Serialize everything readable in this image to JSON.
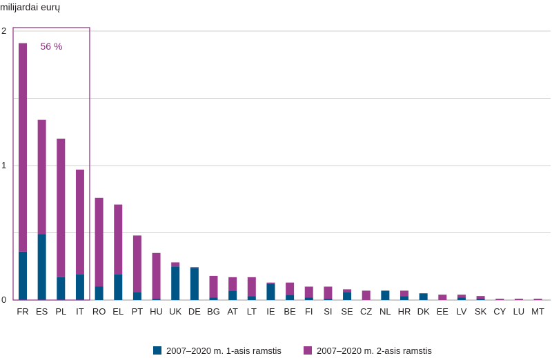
{
  "chart_data": {
    "type": "bar",
    "stacked": true,
    "ylabel": "milijardai eurų",
    "ylim": [
      0,
      2
    ],
    "yticks": [
      "0",
      "1",
      "2"
    ],
    "grid": true,
    "legend_position": "bottom",
    "categories": [
      "FR",
      "ES",
      "PL",
      "IT",
      "RO",
      "EL",
      "PT",
      "HU",
      "UK",
      "DE",
      "BG",
      "AT",
      "LT",
      "IE",
      "BE",
      "FI",
      "SI",
      "SE",
      "CZ",
      "NL",
      "HR",
      "DK",
      "EE",
      "LV",
      "SK",
      "CY",
      "LU",
      "MT"
    ],
    "series": [
      {
        "name": "2007–2020 m. 1-asis ramstis",
        "color": "#005587",
        "values": [
          0.36,
          0.49,
          0.17,
          0.19,
          0.1,
          0.19,
          0.06,
          0.01,
          0.25,
          0.24,
          0.02,
          0.07,
          0.03,
          0.12,
          0.04,
          0.02,
          0.01,
          0.06,
          0.0,
          0.07,
          0.03,
          0.05,
          0.0,
          0.02,
          0.01,
          0.0,
          0.0,
          0.0
        ]
      },
      {
        "name": "2007–2020 m. 2-asis ramstis",
        "color": "#9c3c8e",
        "values": [
          1.55,
          0.85,
          1.03,
          0.78,
          0.66,
          0.52,
          0.42,
          0.34,
          0.03,
          0.005,
          0.16,
          0.1,
          0.14,
          0.01,
          0.09,
          0.08,
          0.09,
          0.02,
          0.07,
          0.0,
          0.04,
          0.0,
          0.04,
          0.02,
          0.02,
          0.01,
          0.01,
          0.01
        ]
      }
    ],
    "highlight": {
      "label": "56 %",
      "from_category": "FR",
      "to_category": "IT",
      "color": "#8b2c7f"
    }
  }
}
